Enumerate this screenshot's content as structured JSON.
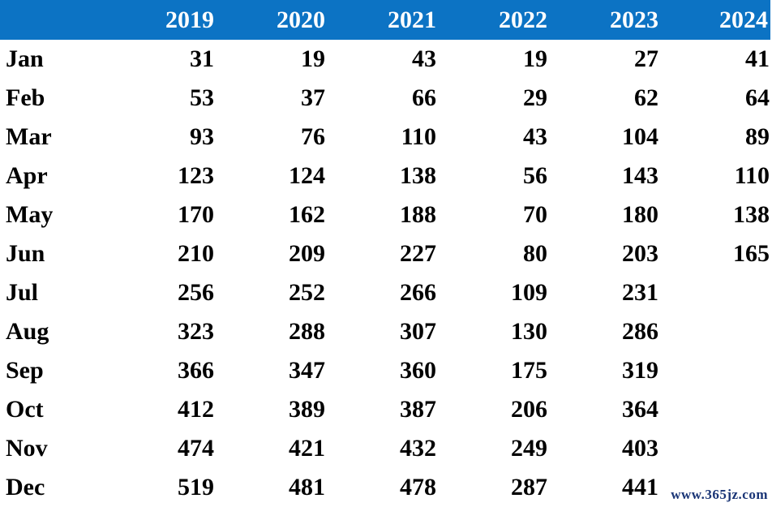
{
  "chart_data": {
    "type": "table",
    "corner_label": "",
    "columns": [
      "2019",
      "2020",
      "2021",
      "2022",
      "2023",
      "2024"
    ],
    "rows": [
      {
        "label": "Jan",
        "values": [
          "31",
          "19",
          "43",
          "19",
          "27",
          "41"
        ]
      },
      {
        "label": "Feb",
        "values": [
          "53",
          "37",
          "66",
          "29",
          "62",
          "64"
        ]
      },
      {
        "label": "Mar",
        "values": [
          "93",
          "76",
          "110",
          "43",
          "104",
          "89"
        ]
      },
      {
        "label": "Apr",
        "values": [
          "123",
          "124",
          "138",
          "56",
          "143",
          "110"
        ]
      },
      {
        "label": "May",
        "values": [
          "170",
          "162",
          "188",
          "70",
          "180",
          "138"
        ]
      },
      {
        "label": "Jun",
        "values": [
          "210",
          "209",
          "227",
          "80",
          "203",
          "165"
        ]
      },
      {
        "label": "Jul",
        "values": [
          "256",
          "252",
          "266",
          "109",
          "231",
          ""
        ]
      },
      {
        "label": "Aug",
        "values": [
          "323",
          "288",
          "307",
          "130",
          "286",
          ""
        ]
      },
      {
        "label": "Sep",
        "values": [
          "366",
          "347",
          "360",
          "175",
          "319",
          ""
        ]
      },
      {
        "label": "Oct",
        "values": [
          "412",
          "389",
          "387",
          "206",
          "364",
          ""
        ]
      },
      {
        "label": "Nov",
        "values": [
          "474",
          "421",
          "432",
          "249",
          "403",
          ""
        ]
      },
      {
        "label": "Dec",
        "values": [
          "519",
          "481",
          "478",
          "287",
          "441",
          ""
        ]
      }
    ]
  },
  "watermark": {
    "text": "www.365jz.com"
  },
  "colors": {
    "header_bg": "#0c73c4",
    "header_text": "#ffffff",
    "body_text": "#000000",
    "watermark_text": "#1a3576"
  }
}
